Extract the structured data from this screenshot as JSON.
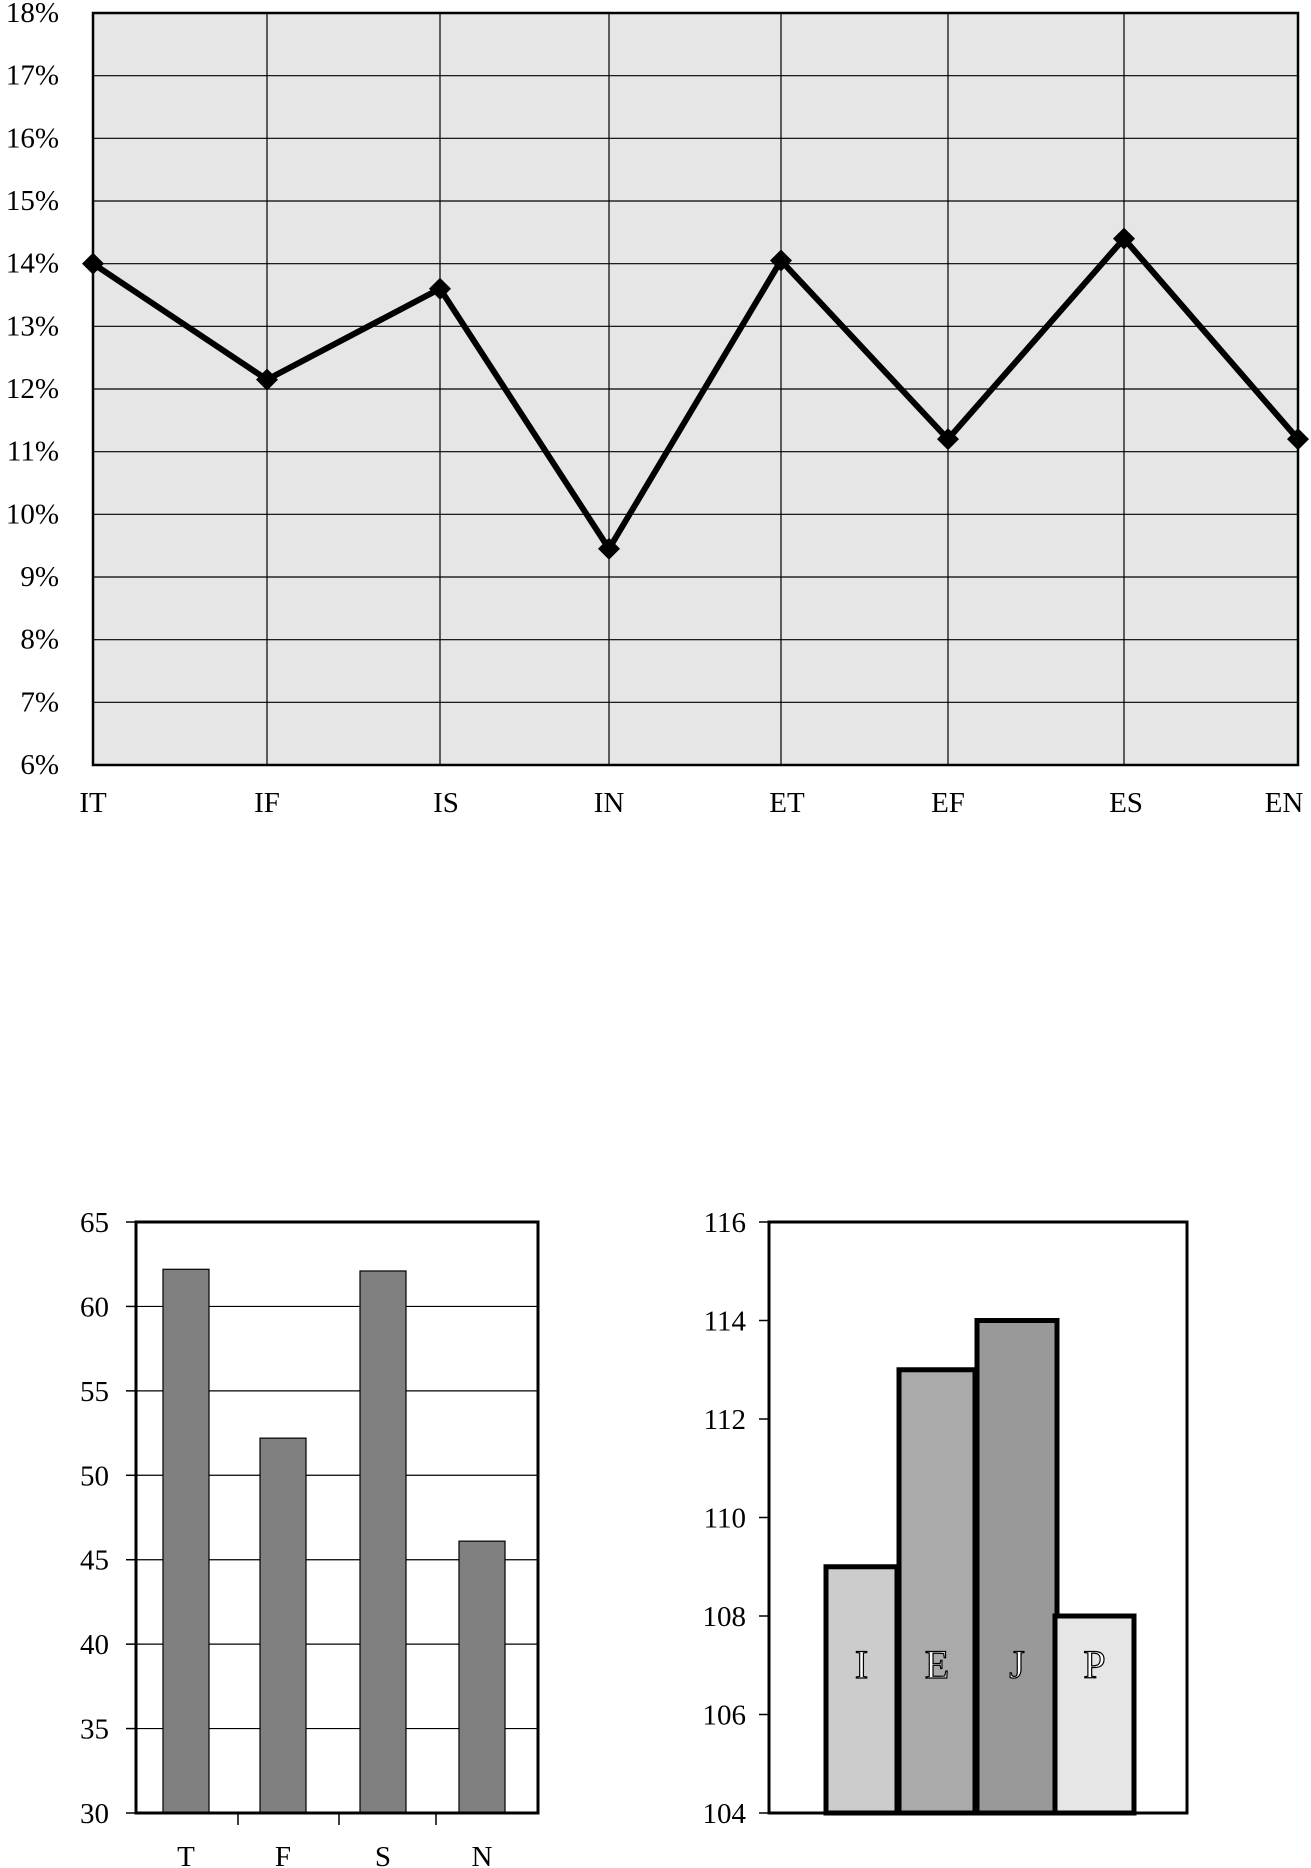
{
  "chart_data": [
    {
      "type": "line",
      "categories": [
        "IT",
        "IF",
        "IS",
        "IN",
        "ET",
        "EF",
        "ES",
        "EN"
      ],
      "series": [
        {
          "values": [
            14.0,
            12.15,
            13.6,
            9.45,
            14.05,
            11.2,
            14.4,
            11.2
          ]
        }
      ],
      "ylim": [
        6,
        18
      ],
      "yticks": [
        "6%",
        "7%",
        "8%",
        "9%",
        "10%",
        "11%",
        "12%",
        "13%",
        "14%",
        "15%",
        "16%",
        "17%",
        "18%"
      ],
      "grid": true,
      "colors": {
        "plot_bg": "#e6e6e6",
        "line": "#000000"
      }
    },
    {
      "type": "bar",
      "categories": [
        "T",
        "F",
        "S",
        "N"
      ],
      "values": [
        62.2,
        52.2,
        62.1,
        46.1
      ],
      "ylim": [
        30,
        65
      ],
      "yticks": [
        "30",
        "35",
        "40",
        "45",
        "50",
        "55",
        "60",
        "65"
      ],
      "grid": true,
      "colors": {
        "bar": "#808080"
      }
    },
    {
      "type": "bar",
      "categories": [
        "I",
        "E",
        "J",
        "P"
      ],
      "values": [
        109,
        113,
        114,
        108
      ],
      "ylim": [
        104,
        116
      ],
      "yticks": [
        "104",
        "106",
        "108",
        "110",
        "112",
        "114",
        "116"
      ],
      "grid": false,
      "colors": {
        "bars": [
          "#cccccc",
          "#aaaaaa",
          "#999999",
          "#e6e6e6"
        ]
      }
    }
  ]
}
